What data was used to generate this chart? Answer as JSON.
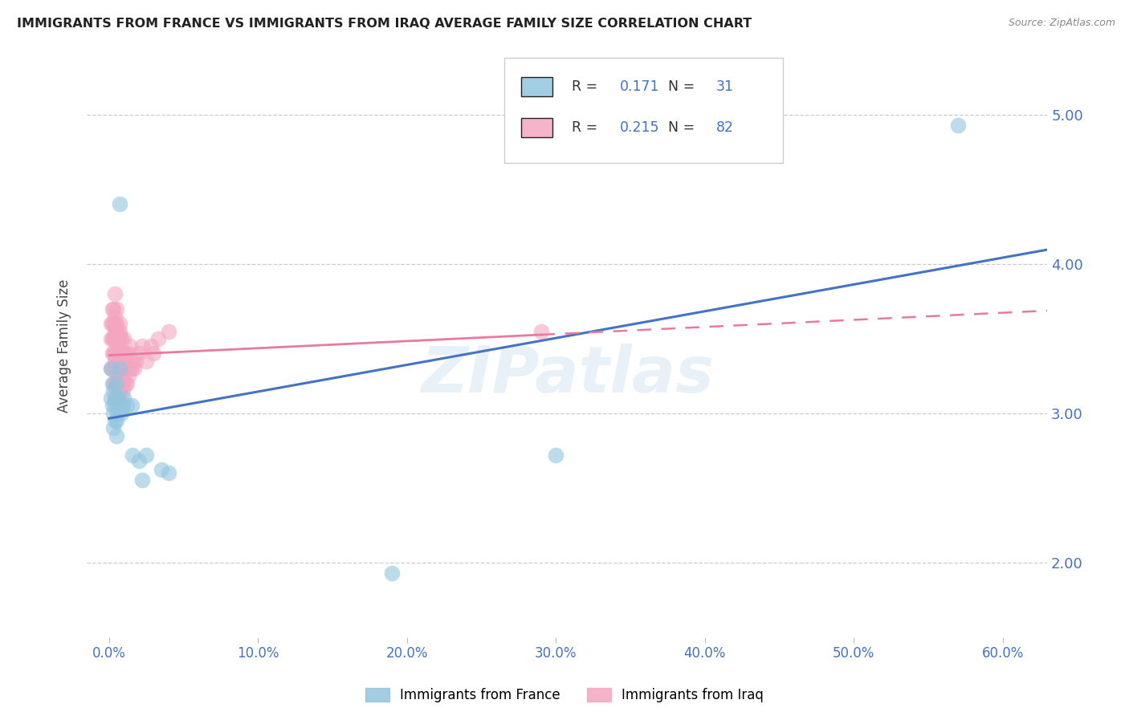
{
  "title": "IMMIGRANTS FROM FRANCE VS IMMIGRANTS FROM IRAQ AVERAGE FAMILY SIZE CORRELATION CHART",
  "source": "Source: ZipAtlas.com",
  "ylabel": "Average Family Size",
  "xlabel_ticks": [
    "0.0%",
    "10.0%",
    "20.0%",
    "30.0%",
    "40.0%",
    "50.0%",
    "60.0%"
  ],
  "xlabel_vals": [
    0.0,
    0.1,
    0.2,
    0.3,
    0.4,
    0.5,
    0.6
  ],
  "ylabel_ticks": [
    "2.00",
    "3.00",
    "4.00",
    "5.00"
  ],
  "ylabel_vals": [
    2.0,
    3.0,
    4.0,
    5.0
  ],
  "ylim": [
    1.5,
    5.4
  ],
  "xlim": [
    -0.015,
    0.63
  ],
  "france_color": "#92c5de",
  "iraq_color": "#f4a6c0",
  "france_R": "0.171",
  "france_N": "31",
  "iraq_R": "0.215",
  "iraq_N": "82",
  "france_scatter_x": [
    0.001,
    0.001,
    0.002,
    0.002,
    0.003,
    0.003,
    0.003,
    0.004,
    0.004,
    0.004,
    0.005,
    0.005,
    0.005,
    0.006,
    0.006,
    0.007,
    0.007,
    0.008,
    0.009,
    0.01,
    0.012,
    0.015,
    0.016,
    0.02,
    0.022,
    0.025,
    0.035,
    0.04,
    0.19,
    0.3,
    0.57
  ],
  "france_scatter_y": [
    3.1,
    3.3,
    3.05,
    3.2,
    3.15,
    2.9,
    3.0,
    3.1,
    2.95,
    3.05,
    3.2,
    2.85,
    2.95,
    3.1,
    3.0,
    4.4,
    3.3,
    3.0,
    3.05,
    3.1,
    3.05,
    3.05,
    2.72,
    2.68,
    2.55,
    2.72,
    2.62,
    2.6,
    1.93,
    2.72,
    4.93
  ],
  "iraq_scatter_x": [
    0.001,
    0.001,
    0.001,
    0.002,
    0.002,
    0.002,
    0.002,
    0.002,
    0.003,
    0.003,
    0.003,
    0.003,
    0.003,
    0.003,
    0.003,
    0.004,
    0.004,
    0.004,
    0.004,
    0.004,
    0.004,
    0.004,
    0.004,
    0.004,
    0.004,
    0.005,
    0.005,
    0.005,
    0.005,
    0.005,
    0.005,
    0.005,
    0.005,
    0.005,
    0.005,
    0.006,
    0.006,
    0.006,
    0.006,
    0.006,
    0.006,
    0.006,
    0.007,
    0.007,
    0.007,
    0.007,
    0.007,
    0.007,
    0.007,
    0.008,
    0.008,
    0.008,
    0.008,
    0.008,
    0.009,
    0.009,
    0.009,
    0.01,
    0.01,
    0.01,
    0.01,
    0.011,
    0.011,
    0.011,
    0.012,
    0.012,
    0.013,
    0.013,
    0.014,
    0.014,
    0.015,
    0.016,
    0.017,
    0.018,
    0.02,
    0.022,
    0.025,
    0.028,
    0.03,
    0.033,
    0.04,
    0.29
  ],
  "iraq_scatter_y": [
    3.3,
    3.5,
    3.6,
    3.3,
    3.4,
    3.5,
    3.6,
    3.7,
    3.2,
    3.3,
    3.4,
    3.5,
    3.5,
    3.6,
    3.7,
    3.1,
    3.2,
    3.3,
    3.35,
    3.4,
    3.5,
    3.55,
    3.6,
    3.65,
    3.8,
    3.1,
    3.2,
    3.25,
    3.3,
    3.35,
    3.4,
    3.5,
    3.55,
    3.6,
    3.7,
    3.1,
    3.2,
    3.25,
    3.3,
    3.4,
    3.5,
    3.55,
    3.15,
    3.25,
    3.3,
    3.4,
    3.5,
    3.55,
    3.6,
    3.2,
    3.3,
    3.35,
    3.4,
    3.5,
    3.15,
    3.25,
    3.4,
    3.2,
    3.3,
    3.4,
    3.5,
    3.2,
    3.3,
    3.4,
    3.2,
    3.35,
    3.25,
    3.4,
    3.3,
    3.45,
    3.3,
    3.35,
    3.3,
    3.35,
    3.4,
    3.45,
    3.35,
    3.45,
    3.4,
    3.5,
    3.55,
    3.55
  ],
  "watermark": "ZIPatlas",
  "background_color": "#ffffff",
  "title_color": "#222222",
  "axis_tick_color_blue": "#4472c4",
  "grid_color": "#cccccc",
  "france_line_color": "#4472c4",
  "iraq_line_color": "#e87aa0",
  "legend_text_color": "#4472c4",
  "legend_label_color": "#333333"
}
